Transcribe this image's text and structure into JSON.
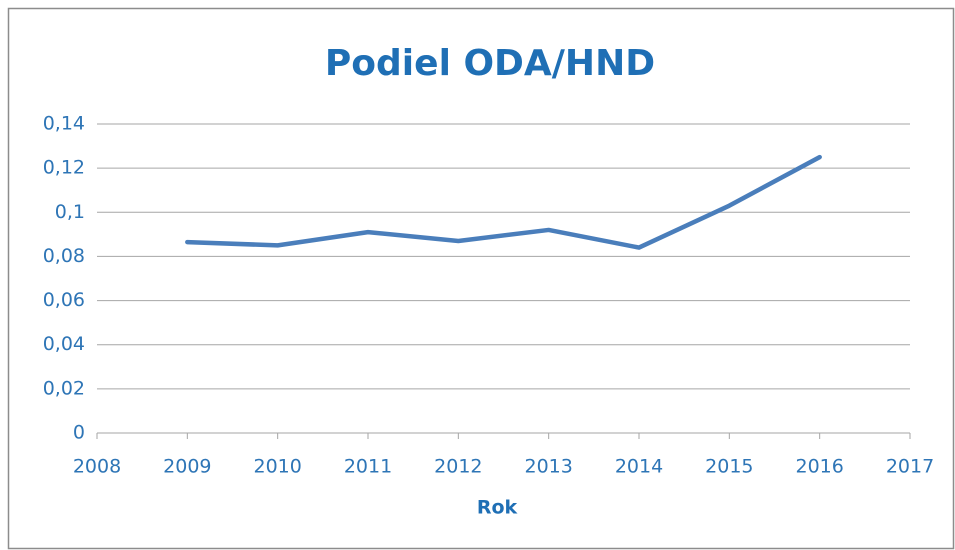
{
  "chart_data": {
    "type": "line",
    "title": "Podiel ODA/HND",
    "x_label": "Rok",
    "x": [
      2009,
      2010,
      2011,
      2012,
      2013,
      2014,
      2015,
      2016
    ],
    "values": [
      0.0865,
      0.085,
      0.091,
      0.087,
      0.092,
      0.084,
      0.103,
      0.125
    ],
    "color": "#4a7ebb",
    "xlim": [
      2008,
      2017
    ],
    "xticks": [
      2008,
      2009,
      2010,
      2011,
      2012,
      2013,
      2014,
      2015,
      2016,
      2017
    ],
    "ylim": [
      0,
      0.14
    ],
    "yticks": [
      0,
      {
        "value": 0.02,
        "label": "0,02"
      },
      {
        "value": 0.04,
        "label": "0,04"
      },
      {
        "value": 0.06,
        "label": "0,06"
      },
      {
        "value": 0.08,
        "label": "0,08"
      },
      {
        "value": 0.1,
        "label": "0,1"
      },
      {
        "value": 0.12,
        "label": "0,12"
      },
      {
        "value": 0.14,
        "label": "0,14"
      }
    ],
    "grid": true
  }
}
